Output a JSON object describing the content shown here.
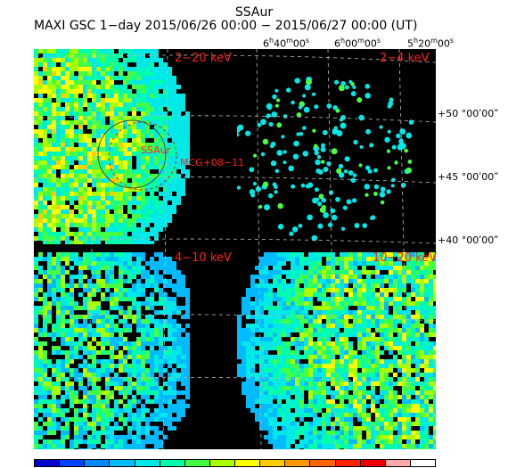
{
  "header": {
    "title": "SSAur",
    "subtitle": "MAXI GSC 1−day 2015/06/26 00:00 − 2015/06/27 00:00 (UT)"
  },
  "ra_labels": [
    {
      "h": "6",
      "m": "40",
      "s": "00"
    },
    {
      "h": "6",
      "m": "00",
      "s": "00"
    },
    {
      "h": "5",
      "m": "20",
      "s": "00"
    }
  ],
  "dec_labels": [
    "+50 °00ʹ00ʺ",
    "+45 °00ʹ00ʺ",
    "+40 °00ʹ00ʺ"
  ],
  "panels": [
    {
      "band": "2−20 keV"
    },
    {
      "band": "2−4 keV"
    },
    {
      "band": "4−10 keV"
    },
    {
      "band": "10−20 keV"
    }
  ],
  "sources": {
    "target": "SSAur",
    "neighbor": "MCG+08−11"
  },
  "colorbar": [
    "#0000cc",
    "#0044ff",
    "#0088ff",
    "#00bbff",
    "#00e8e8",
    "#00ffaa",
    "#44ff44",
    "#aaff00",
    "#ffff00",
    "#ffcc00",
    "#ff9900",
    "#ff6600",
    "#ff2200",
    "#ee0000",
    "#ffaaaa",
    "#ffffff"
  ]
}
